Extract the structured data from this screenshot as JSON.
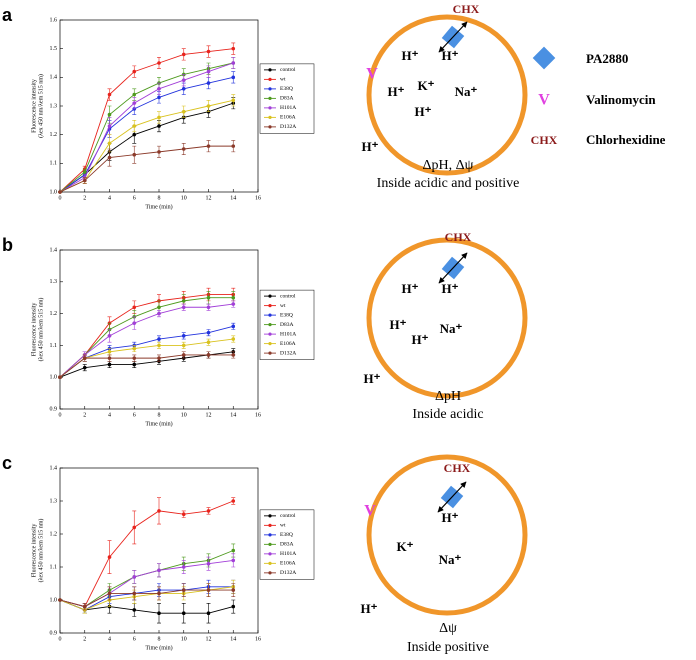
{
  "chart_data": [
    {
      "type": "line",
      "panel_label": "a",
      "xlabel": "Time (min)",
      "ylabel": [
        "Fluorescence intensity",
        "(λex 450 nm/λem 515 nm)"
      ],
      "x": [
        0,
        2,
        4,
        6,
        8,
        10,
        12,
        14
      ],
      "xlim": [
        0,
        16
      ],
      "xticks": [
        0,
        2,
        4,
        6,
        8,
        10,
        12,
        14,
        16
      ],
      "ylim": [
        1,
        1.6
      ],
      "yticks": [
        {
          "value": 1,
          "label": "1.0"
        },
        1.1,
        1.2,
        1.3,
        1.4,
        1.5,
        1.6
      ],
      "legend": "right",
      "series": [
        {
          "name": "control",
          "color": "#000000",
          "values": [
            1.0,
            1.06,
            1.14,
            1.2,
            1.23,
            1.26,
            1.28,
            1.31
          ],
          "errors": [
            0,
            0.01,
            0.03,
            0.03,
            0.02,
            0.02,
            0.02,
            0.02
          ]
        },
        {
          "name": "wt",
          "color": "#e8231c",
          "values": [
            1.0,
            1.08,
            1.34,
            1.42,
            1.45,
            1.48,
            1.49,
            1.5
          ],
          "errors": [
            0,
            0.01,
            0.02,
            0.02,
            0.02,
            0.02,
            0.02,
            0.02
          ]
        },
        {
          "name": "E38Q",
          "color": "#2233dd",
          "values": [
            1.0,
            1.06,
            1.22,
            1.29,
            1.33,
            1.36,
            1.38,
            1.4
          ],
          "errors": [
            0,
            0.01,
            0.03,
            0.02,
            0.02,
            0.02,
            0.02,
            0.02
          ]
        },
        {
          "name": "D83A",
          "color": "#4e9a1e",
          "values": [
            1.0,
            1.07,
            1.27,
            1.34,
            1.38,
            1.41,
            1.43,
            1.45
          ],
          "errors": [
            0,
            0.01,
            0.03,
            0.02,
            0.02,
            0.02,
            0.02,
            0.02
          ]
        },
        {
          "name": "H101A",
          "color": "#a23fd8",
          "values": [
            1.0,
            1.05,
            1.23,
            1.31,
            1.36,
            1.39,
            1.42,
            1.45
          ],
          "errors": [
            0,
            0.01,
            0.03,
            0.02,
            0.02,
            0.02,
            0.02,
            0.02
          ]
        },
        {
          "name": "E106A",
          "color": "#d9c21e",
          "values": [
            1.0,
            1.04,
            1.17,
            1.23,
            1.26,
            1.28,
            1.3,
            1.32
          ],
          "errors": [
            0,
            0.01,
            0.03,
            0.02,
            0.02,
            0.02,
            0.02,
            0.02
          ]
        },
        {
          "name": "D132A",
          "color": "#8b3a2a",
          "values": [
            1.0,
            1.04,
            1.12,
            1.13,
            1.14,
            1.15,
            1.16,
            1.16
          ],
          "errors": [
            0,
            0.01,
            0.03,
            0.03,
            0.02,
            0.02,
            0.02,
            0.02
          ]
        }
      ]
    },
    {
      "type": "line",
      "panel_label": "b",
      "xlabel": "Time (min)",
      "ylabel": [
        "Fluorescence intensity",
        "(λex 450 nm/λem 515 nm)"
      ],
      "x": [
        0,
        2,
        4,
        6,
        8,
        10,
        12,
        14
      ],
      "xlim": [
        0,
        16
      ],
      "xticks": [
        0,
        2,
        4,
        6,
        8,
        10,
        12,
        14,
        16
      ],
      "ylim": [
        0.9,
        1.4
      ],
      "yticks": [
        0.9,
        {
          "value": 1,
          "label": "1.0"
        },
        1.1,
        1.2,
        1.3,
        1.4
      ],
      "legend": "right",
      "series": [
        {
          "name": "control",
          "color": "#000000",
          "values": [
            1.0,
            1.03,
            1.04,
            1.04,
            1.05,
            1.06,
            1.07,
            1.08
          ],
          "errors": [
            0,
            0.01,
            0.01,
            0.01,
            0.01,
            0.01,
            0.01,
            0.01
          ]
        },
        {
          "name": "wt",
          "color": "#e8231c",
          "values": [
            1.0,
            1.07,
            1.17,
            1.22,
            1.24,
            1.25,
            1.26,
            1.26
          ],
          "errors": [
            0,
            0.01,
            0.02,
            0.02,
            0.02,
            0.02,
            0.02,
            0.02
          ]
        },
        {
          "name": "E38Q",
          "color": "#2233dd",
          "values": [
            1.0,
            1.06,
            1.09,
            1.1,
            1.12,
            1.13,
            1.14,
            1.16
          ],
          "errors": [
            0,
            0.01,
            0.01,
            0.01,
            0.01,
            0.01,
            0.01,
            0.01
          ]
        },
        {
          "name": "D83A",
          "color": "#4e9a1e",
          "values": [
            1.0,
            1.07,
            1.15,
            1.19,
            1.22,
            1.24,
            1.25,
            1.25
          ],
          "errors": [
            0,
            0.01,
            0.02,
            0.02,
            0.02,
            0.02,
            0.02,
            0.02
          ]
        },
        {
          "name": "H101A",
          "color": "#a23fd8",
          "values": [
            1.0,
            1.07,
            1.13,
            1.17,
            1.2,
            1.22,
            1.22,
            1.23
          ],
          "errors": [
            0,
            0.01,
            0.02,
            0.02,
            0.01,
            0.01,
            0.01,
            0.01
          ]
        },
        {
          "name": "E106A",
          "color": "#d9c21e",
          "values": [
            1.0,
            1.06,
            1.08,
            1.09,
            1.1,
            1.1,
            1.11,
            1.12
          ],
          "errors": [
            0,
            0.01,
            0.01,
            0.01,
            0.01,
            0.01,
            0.01,
            0.01
          ]
        },
        {
          "name": "D132A",
          "color": "#8b3a2a",
          "values": [
            1.0,
            1.06,
            1.06,
            1.06,
            1.06,
            1.07,
            1.07,
            1.07
          ],
          "errors": [
            0,
            0.01,
            0.01,
            0.01,
            0.01,
            0.01,
            0.01,
            0.01
          ]
        }
      ]
    },
    {
      "type": "line",
      "panel_label": "c",
      "xlabel": "Time (min)",
      "ylabel": [
        "Fluorescence intensity",
        "(λex 450 nm/λem 515 nm)"
      ],
      "x": [
        0,
        2,
        4,
        6,
        8,
        10,
        12,
        14
      ],
      "xlim": [
        0,
        16
      ],
      "xticks": [
        0,
        2,
        4,
        6,
        8,
        10,
        12,
        14,
        16
      ],
      "ylim": [
        0.9,
        1.4
      ],
      "yticks": [
        0.9,
        {
          "value": 1,
          "label": "1.0"
        },
        1.1,
        1.2,
        1.3,
        1.4
      ],
      "legend": "right",
      "series": [
        {
          "name": "control",
          "color": "#000000",
          "values": [
            1.0,
            0.97,
            0.98,
            0.97,
            0.96,
            0.96,
            0.96,
            0.98
          ],
          "errors": [
            0,
            0.01,
            0.02,
            0.02,
            0.03,
            0.03,
            0.03,
            0.02
          ]
        },
        {
          "name": "wt",
          "color": "#e8231c",
          "values": [
            1.0,
            0.98,
            1.13,
            1.22,
            1.27,
            1.26,
            1.27,
            1.3
          ],
          "errors": [
            0,
            0.01,
            0.05,
            0.05,
            0.04,
            0.01,
            0.01,
            0.01
          ]
        },
        {
          "name": "E38Q",
          "color": "#2233dd",
          "values": [
            1.0,
            0.97,
            1.01,
            1.02,
            1.03,
            1.03,
            1.04,
            1.04
          ],
          "errors": [
            0,
            0.01,
            0.02,
            0.02,
            0.02,
            0.02,
            0.02,
            0.02
          ]
        },
        {
          "name": "D83A",
          "color": "#4e9a1e",
          "values": [
            1.0,
            0.98,
            1.03,
            1.07,
            1.09,
            1.11,
            1.12,
            1.15
          ],
          "errors": [
            0,
            0.01,
            0.02,
            0.02,
            0.02,
            0.02,
            0.02,
            0.02
          ]
        },
        {
          "name": "H101A",
          "color": "#a23fd8",
          "values": [
            1.0,
            0.98,
            1.02,
            1.07,
            1.09,
            1.1,
            1.11,
            1.12
          ],
          "errors": [
            0,
            0.01,
            0.02,
            0.02,
            0.02,
            0.02,
            0.02,
            0.02
          ]
        },
        {
          "name": "E106A",
          "color": "#d9c21e",
          "values": [
            1.0,
            0.97,
            1.0,
            1.01,
            1.02,
            1.02,
            1.03,
            1.04
          ],
          "errors": [
            0,
            0.01,
            0.02,
            0.02,
            0.02,
            0.02,
            0.02,
            0.02
          ]
        },
        {
          "name": "D132A",
          "color": "#8b3a2a",
          "values": [
            1.0,
            0.98,
            1.02,
            1.02,
            1.02,
            1.03,
            1.03,
            1.03
          ],
          "errors": [
            0,
            0.01,
            0.02,
            0.02,
            0.02,
            0.02,
            0.02,
            0.02
          ]
        }
      ]
    }
  ],
  "diagrams": [
    {
      "labels": [
        "CHX",
        "H⁺",
        "H⁺",
        "K⁺",
        "H⁺",
        "Na⁺",
        "H⁺",
        "H⁺"
      ],
      "caption": [
        "ΔpH, Δψ",
        "Inside acidic and positive"
      ]
    },
    {
      "labels": [
        "CHX",
        "H⁺",
        "H⁺",
        "H⁺",
        "Na⁺",
        "H⁺",
        "H⁺"
      ],
      "caption": [
        "ΔpH",
        "Inside acidic"
      ]
    },
    {
      "labels": [
        "CHX",
        "H⁺",
        "K⁺",
        "Na⁺",
        "H⁺"
      ],
      "caption": [
        "Δψ",
        "Inside positive"
      ]
    }
  ],
  "key": {
    "pa2880": "PA2880",
    "valinomycin_symbol": "V",
    "valinomycin": "Valinomycin",
    "chx_symbol": "CHX",
    "chlorhexidine": "Chlorhexidine"
  }
}
